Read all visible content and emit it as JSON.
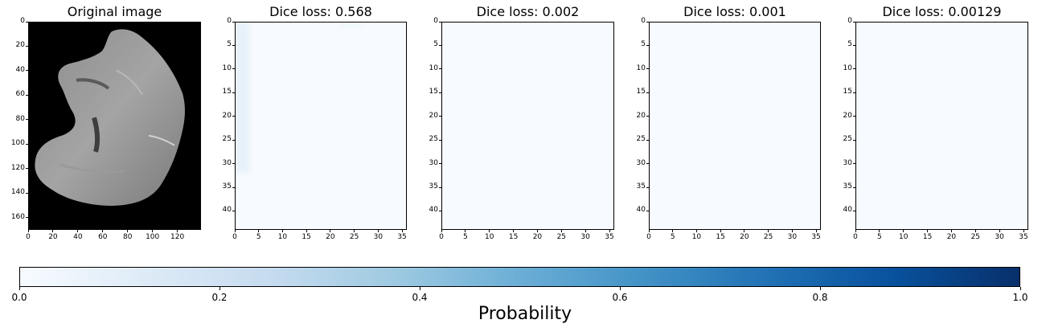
{
  "chart_data": [
    {
      "type": "heatmap",
      "title": "Original image",
      "colormap": "gray",
      "xlim": [
        0,
        139
      ],
      "ylim": [
        170,
        0
      ],
      "xticks": [
        0,
        20,
        40,
        60,
        80,
        100,
        120
      ],
      "yticks": [
        0,
        20,
        40,
        60,
        80,
        100,
        120,
        140,
        160
      ]
    },
    {
      "type": "heatmap",
      "title": "Dice loss: 0.568",
      "colormap": "Blues",
      "value_range": [
        0.0,
        1.0
      ],
      "xlim": [
        0,
        36
      ],
      "ylim": [
        44,
        0
      ],
      "xticks": [
        0,
        5,
        10,
        15,
        20,
        25,
        30,
        35
      ],
      "yticks": [
        0,
        5,
        10,
        15,
        20,
        25,
        30,
        35,
        40
      ],
      "faint_regions": [
        {
          "x": [
            0,
            3
          ],
          "y": [
            0,
            32
          ],
          "value": 0.08
        },
        {
          "x": [
            22,
            27
          ],
          "y": [
            0,
            1
          ],
          "value": 0.05
        }
      ]
    },
    {
      "type": "heatmap",
      "title": "Dice loss: 0.002",
      "colormap": "Blues",
      "value_range": [
        0.0,
        1.0
      ],
      "xlim": [
        0,
        36
      ],
      "ylim": [
        44,
        0
      ],
      "xticks": [
        0,
        5,
        10,
        15,
        20,
        25,
        30,
        35
      ],
      "yticks": [
        0,
        5,
        10,
        15,
        20,
        25,
        30,
        35,
        40
      ]
    },
    {
      "type": "heatmap",
      "title": "Dice loss: 0.001",
      "colormap": "Blues",
      "value_range": [
        0.0,
        1.0
      ],
      "xlim": [
        0,
        36
      ],
      "ylim": [
        44,
        0
      ],
      "xticks": [
        0,
        5,
        10,
        15,
        20,
        25,
        30,
        35
      ],
      "yticks": [
        0,
        5,
        10,
        15,
        20,
        25,
        30,
        35,
        40
      ]
    },
    {
      "type": "heatmap",
      "title": "Dice loss: 0.00129",
      "colormap": "Blues",
      "value_range": [
        0.0,
        1.0
      ],
      "xlim": [
        0,
        36
      ],
      "ylim": [
        44,
        0
      ],
      "xticks": [
        0,
        5,
        10,
        15,
        20,
        25,
        30,
        35
      ],
      "yticks": [
        0,
        5,
        10,
        15,
        20,
        25,
        30,
        35,
        40
      ]
    }
  ],
  "colorbar": {
    "label": "Probability",
    "range": [
      0.0,
      1.0
    ],
    "ticks": [
      "0.0",
      "0.2",
      "0.4",
      "0.6",
      "0.8",
      "1.0"
    ]
  },
  "colors": {
    "colormap_low": "#f7fbff",
    "colormap_high": "#08306b",
    "image_background": "#000000"
  }
}
